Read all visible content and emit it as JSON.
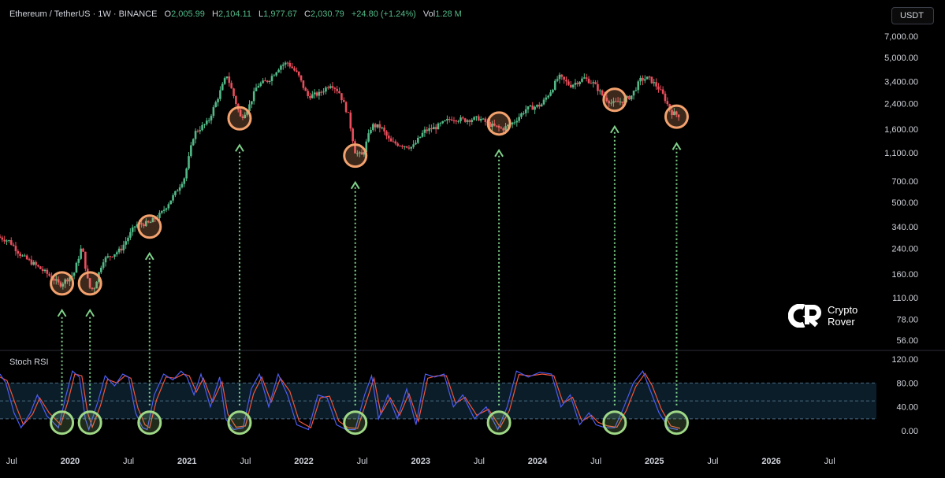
{
  "header": {
    "symbol": "Ethereum / TetherUS · 1W · BINANCE",
    "o_label": "O",
    "o_value": "2,005.99",
    "h_label": "H",
    "h_value": "2,104.11",
    "l_label": "L",
    "l_value": "1,977.67",
    "c_label": "C",
    "c_value": "2,030.79",
    "change": "+24.80 (+1.24%)",
    "vol_label": "Vol",
    "vol_value": "1.28 M"
  },
  "currency_button": "USDT",
  "stoch_title": "Stoch RSI",
  "logo": {
    "line1": "Crypto",
    "line2": "Rover"
  },
  "colors": {
    "up": "#53b987",
    "down": "#eb4d5c",
    "k_line": "#4c5cf0",
    "d_line": "#f0563c",
    "circle_orange": "#f3a26e",
    "circle_green": "#9fd886",
    "arrow": "#7fd18a"
  },
  "chart_data": [
    {
      "type": "candlestick",
      "yscale": "log",
      "y_ticks": [
        56,
        78,
        110,
        160,
        240,
        340,
        500,
        700,
        1100,
        1600,
        2400,
        3400,
        5000,
        7000
      ],
      "y_tick_labels": [
        "56.00",
        "78.00",
        "110.00",
        "160.00",
        "240.00",
        "340.00",
        "500.00",
        "700.00",
        "1,100.00",
        "1,600.00",
        "2,400.00",
        "3,400.00",
        "5,000.00",
        "7,000.00"
      ],
      "x_ticks": [
        "Jul",
        "2020",
        "Jul",
        "2021",
        "Jul",
        "2022",
        "Jul",
        "2023",
        "Jul",
        "2024",
        "Jul",
        "2025",
        "Jul",
        "2026",
        "Jul"
      ],
      "x_tick_dates": [
        2019.5,
        2020,
        2020.5,
        2021,
        2021.5,
        2022,
        2022.5,
        2023,
        2023.5,
        2024,
        2024.5,
        2025,
        2025.5,
        2026,
        2026.5
      ],
      "x_range": [
        2019.4,
        2026.9
      ],
      "price_path": [
        [
          2019.4,
          290
        ],
        [
          2019.5,
          270
        ],
        [
          2019.6,
          215
        ],
        [
          2019.72,
          185
        ],
        [
          2019.85,
          155
        ],
        [
          2019.93,
          135
        ],
        [
          2020.05,
          160
        ],
        [
          2020.12,
          250
        ],
        [
          2020.18,
          130
        ],
        [
          2020.22,
          125
        ],
        [
          2020.3,
          200
        ],
        [
          2020.45,
          235
        ],
        [
          2020.58,
          350
        ],
        [
          2020.7,
          360
        ],
        [
          2020.8,
          420
        ],
        [
          2020.92,
          580
        ],
        [
          2021.0,
          750
        ],
        [
          2021.08,
          1500
        ],
        [
          2021.2,
          1800
        ],
        [
          2021.28,
          2600
        ],
        [
          2021.36,
          3800
        ],
        [
          2021.42,
          2700
        ],
        [
          2021.48,
          1900
        ],
        [
          2021.55,
          2300
        ],
        [
          2021.62,
          3200
        ],
        [
          2021.72,
          3500
        ],
        [
          2021.82,
          4400
        ],
        [
          2021.88,
          4600
        ],
        [
          2021.97,
          3800
        ],
        [
          2022.05,
          2700
        ],
        [
          2022.15,
          2800
        ],
        [
          2022.25,
          3300
        ],
        [
          2022.32,
          2900
        ],
        [
          2022.4,
          2000
        ],
        [
          2022.46,
          1100
        ],
        [
          2022.52,
          1050
        ],
        [
          2022.6,
          1700
        ],
        [
          2022.68,
          1650
        ],
        [
          2022.76,
          1300
        ],
        [
          2022.85,
          1250
        ],
        [
          2022.95,
          1200
        ],
        [
          2023.05,
          1550
        ],
        [
          2023.15,
          1650
        ],
        [
          2023.28,
          1900
        ],
        [
          2023.4,
          1850
        ],
        [
          2023.52,
          1900
        ],
        [
          2023.62,
          1700
        ],
        [
          2023.72,
          1600
        ],
        [
          2023.82,
          1800
        ],
        [
          2023.92,
          2200
        ],
        [
          2024.05,
          2350
        ],
        [
          2024.14,
          3000
        ],
        [
          2024.2,
          3700
        ],
        [
          2024.3,
          3200
        ],
        [
          2024.42,
          3600
        ],
        [
          2024.5,
          3300
        ],
        [
          2024.58,
          2700
        ],
        [
          2024.66,
          2400
        ],
        [
          2024.74,
          2500
        ],
        [
          2024.82,
          2700
        ],
        [
          2024.9,
          3500
        ],
        [
          2024.97,
          3600
        ],
        [
          2025.05,
          3100
        ],
        [
          2025.1,
          2700
        ],
        [
          2025.16,
          2100
        ],
        [
          2025.22,
          2000
        ]
      ],
      "circles": [
        {
          "x": 2019.93,
          "y": 138
        },
        {
          "x": 2020.17,
          "y": 138
        },
        {
          "x": 2020.68,
          "y": 340
        },
        {
          "x": 2021.45,
          "y": 1900
        },
        {
          "x": 2022.44,
          "y": 1050
        },
        {
          "x": 2023.67,
          "y": 1750
        },
        {
          "x": 2024.66,
          "y": 2550
        },
        {
          "x": 2025.19,
          "y": 1950
        }
      ]
    },
    {
      "type": "line",
      "title": "Stoch RSI",
      "y_ticks": [
        0,
        40,
        80,
        120
      ],
      "y_tick_labels": [
        "0.00",
        "40.00",
        "80.00",
        "120.00"
      ],
      "band": [
        20,
        80
      ],
      "mid": 50,
      "k_path": [
        [
          2019.4,
          95
        ],
        [
          2019.45,
          80
        ],
        [
          2019.52,
          30
        ],
        [
          2019.58,
          5
        ],
        [
          2019.66,
          30
        ],
        [
          2019.72,
          60
        ],
        [
          2019.8,
          25
        ],
        [
          2019.9,
          5
        ],
        [
          2019.96,
          55
        ],
        [
          2020.02,
          100
        ],
        [
          2020.08,
          90
        ],
        [
          2020.13,
          20
        ],
        [
          2020.16,
          2
        ],
        [
          2020.24,
          50
        ],
        [
          2020.3,
          92
        ],
        [
          2020.38,
          75
        ],
        [
          2020.45,
          95
        ],
        [
          2020.5,
          90
        ],
        [
          2020.56,
          30
        ],
        [
          2020.62,
          5
        ],
        [
          2020.66,
          2
        ],
        [
          2020.72,
          60
        ],
        [
          2020.8,
          95
        ],
        [
          2020.88,
          85
        ],
        [
          2020.95,
          100
        ],
        [
          2021.0,
          90
        ],
        [
          2021.06,
          60
        ],
        [
          2021.12,
          95
        ],
        [
          2021.2,
          40
        ],
        [
          2021.28,
          90
        ],
        [
          2021.33,
          20
        ],
        [
          2021.4,
          2
        ],
        [
          2021.48,
          5
        ],
        [
          2021.55,
          70
        ],
        [
          2021.62,
          95
        ],
        [
          2021.7,
          40
        ],
        [
          2021.78,
          95
        ],
        [
          2021.86,
          60
        ],
        [
          2021.94,
          10
        ],
        [
          2022.04,
          2
        ],
        [
          2022.12,
          60
        ],
        [
          2022.2,
          55
        ],
        [
          2022.28,
          10
        ],
        [
          2022.36,
          2
        ],
        [
          2022.44,
          2
        ],
        [
          2022.52,
          60
        ],
        [
          2022.58,
          92
        ],
        [
          2022.64,
          20
        ],
        [
          2022.72,
          60
        ],
        [
          2022.8,
          20
        ],
        [
          2022.88,
          70
        ],
        [
          2022.96,
          10
        ],
        [
          2023.04,
          95
        ],
        [
          2023.12,
          90
        ],
        [
          2023.2,
          95
        ],
        [
          2023.28,
          40
        ],
        [
          2023.36,
          60
        ],
        [
          2023.46,
          20
        ],
        [
          2023.56,
          40
        ],
        [
          2023.66,
          2
        ],
        [
          2023.74,
          40
        ],
        [
          2023.82,
          100
        ],
        [
          2023.92,
          90
        ],
        [
          2024.02,
          98
        ],
        [
          2024.12,
          95
        ],
        [
          2024.2,
          40
        ],
        [
          2024.28,
          60
        ],
        [
          2024.36,
          10
        ],
        [
          2024.44,
          30
        ],
        [
          2024.5,
          10
        ],
        [
          2024.58,
          5
        ],
        [
          2024.66,
          5
        ],
        [
          2024.74,
          40
        ],
        [
          2024.82,
          80
        ],
        [
          2024.9,
          100
        ],
        [
          2024.96,
          70
        ],
        [
          2025.04,
          30
        ],
        [
          2025.12,
          5
        ],
        [
          2025.2,
          2
        ]
      ],
      "d_path": [
        [
          2019.4,
          90
        ],
        [
          2019.46,
          84
        ],
        [
          2019.54,
          40
        ],
        [
          2019.6,
          10
        ],
        [
          2019.68,
          28
        ],
        [
          2019.74,
          55
        ],
        [
          2019.82,
          30
        ],
        [
          2019.92,
          10
        ],
        [
          2019.98,
          48
        ],
        [
          2020.04,
          95
        ],
        [
          2020.1,
          92
        ],
        [
          2020.15,
          30
        ],
        [
          2020.19,
          6
        ],
        [
          2020.26,
          42
        ],
        [
          2020.32,
          86
        ],
        [
          2020.4,
          80
        ],
        [
          2020.47,
          92
        ],
        [
          2020.52,
          88
        ],
        [
          2020.58,
          38
        ],
        [
          2020.64,
          10
        ],
        [
          2020.68,
          5
        ],
        [
          2020.74,
          52
        ],
        [
          2020.82,
          90
        ],
        [
          2020.9,
          88
        ],
        [
          2020.97,
          95
        ],
        [
          2021.02,
          92
        ],
        [
          2021.08,
          65
        ],
        [
          2021.14,
          88
        ],
        [
          2021.22,
          48
        ],
        [
          2021.3,
          82
        ],
        [
          2021.35,
          28
        ],
        [
          2021.42,
          6
        ],
        [
          2021.5,
          8
        ],
        [
          2021.57,
          62
        ],
        [
          2021.64,
          90
        ],
        [
          2021.72,
          48
        ],
        [
          2021.8,
          88
        ],
        [
          2021.88,
          66
        ],
        [
          2021.96,
          16
        ],
        [
          2022.06,
          5
        ],
        [
          2022.14,
          55
        ],
        [
          2022.22,
          58
        ],
        [
          2022.3,
          16
        ],
        [
          2022.38,
          5
        ],
        [
          2022.46,
          4
        ],
        [
          2022.54,
          52
        ],
        [
          2022.6,
          88
        ],
        [
          2022.66,
          28
        ],
        [
          2022.74,
          55
        ],
        [
          2022.82,
          26
        ],
        [
          2022.9,
          62
        ],
        [
          2022.98,
          16
        ],
        [
          2023.06,
          88
        ],
        [
          2023.14,
          92
        ],
        [
          2023.22,
          92
        ],
        [
          2023.3,
          46
        ],
        [
          2023.38,
          56
        ],
        [
          2023.48,
          26
        ],
        [
          2023.58,
          36
        ],
        [
          2023.68,
          6
        ],
        [
          2023.76,
          34
        ],
        [
          2023.84,
          94
        ],
        [
          2023.94,
          92
        ],
        [
          2024.04,
          95
        ],
        [
          2024.14,
          92
        ],
        [
          2024.22,
          46
        ],
        [
          2024.3,
          56
        ],
        [
          2024.38,
          16
        ],
        [
          2024.46,
          26
        ],
        [
          2024.52,
          14
        ],
        [
          2024.6,
          8
        ],
        [
          2024.68,
          6
        ],
        [
          2024.76,
          34
        ],
        [
          2024.84,
          74
        ],
        [
          2024.92,
          96
        ],
        [
          2024.98,
          76
        ],
        [
          2025.06,
          36
        ],
        [
          2025.14,
          8
        ],
        [
          2025.22,
          4
        ]
      ],
      "circles": [
        {
          "x": 2019.93,
          "y": 3
        },
        {
          "x": 2020.17,
          "y": 3
        },
        {
          "x": 2020.68,
          "y": 3
        },
        {
          "x": 2021.45,
          "y": 3
        },
        {
          "x": 2022.44,
          "y": 3
        },
        {
          "x": 2023.67,
          "y": 3
        },
        {
          "x": 2024.66,
          "y": 3
        },
        {
          "x": 2025.19,
          "y": 3
        }
      ]
    }
  ]
}
